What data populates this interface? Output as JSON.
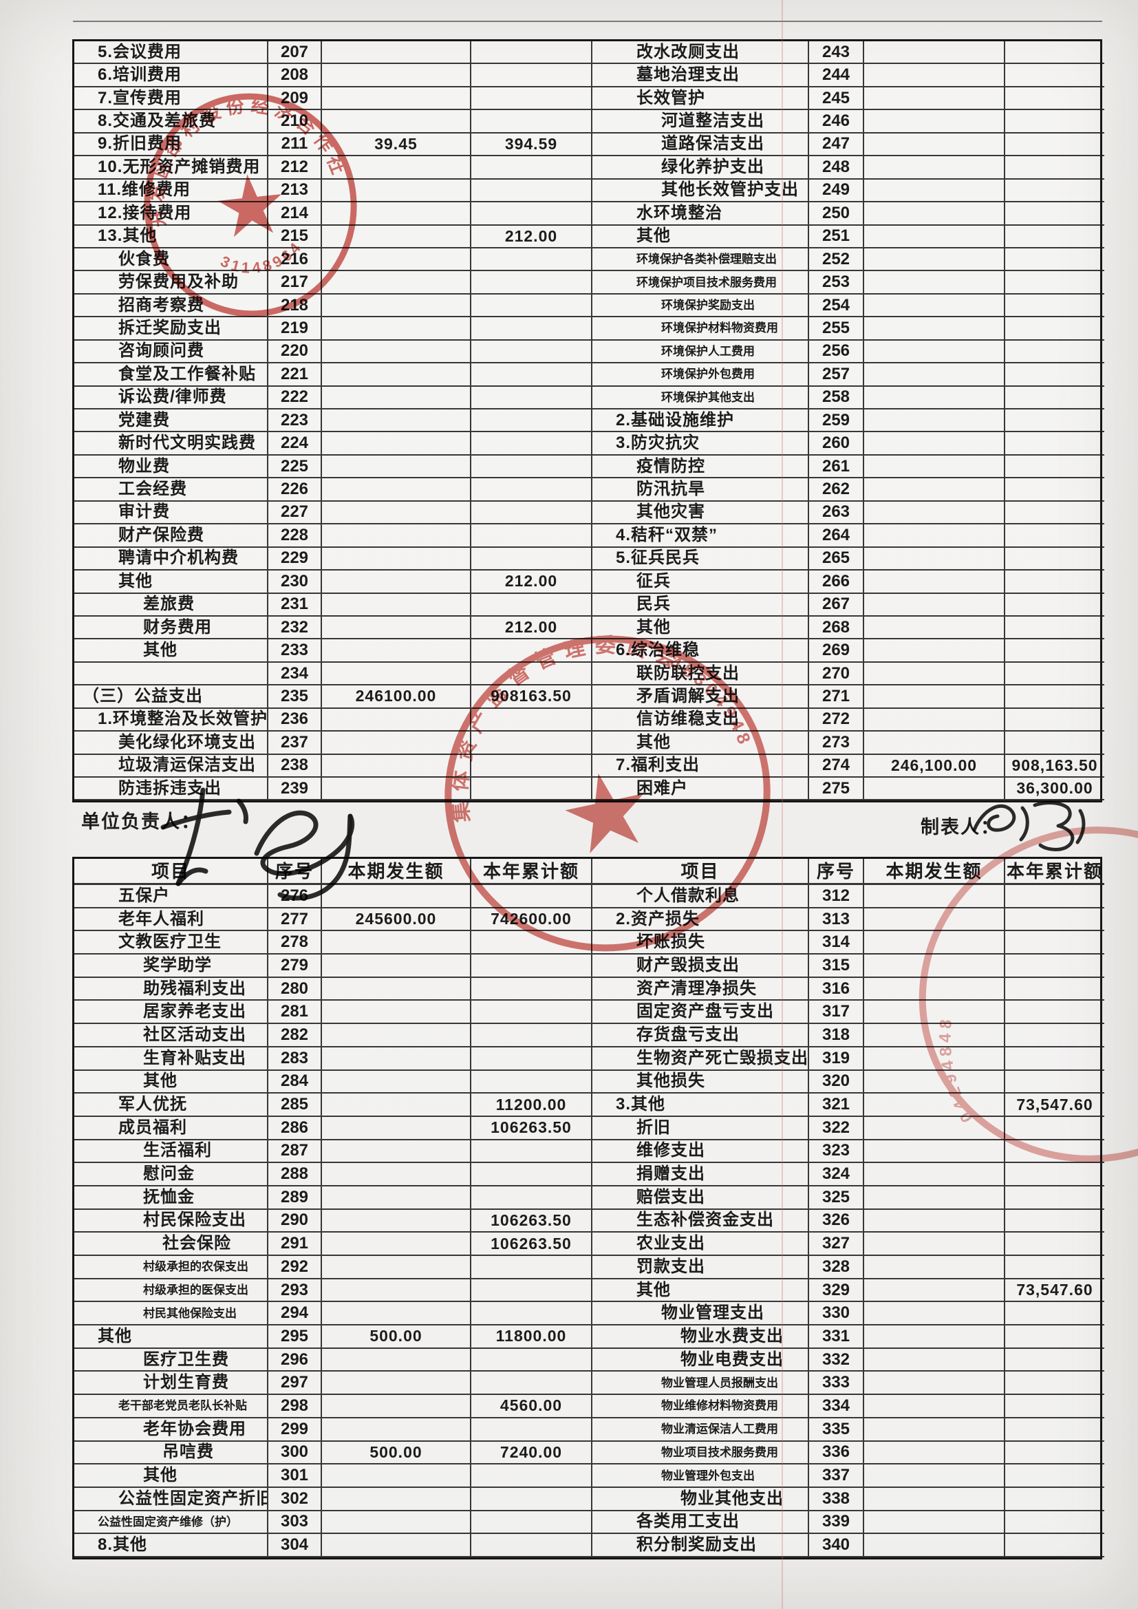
{
  "doc": {
    "unit_head_label": "单位负责人：",
    "preparer_label": "制表人：",
    "headers": [
      "项目",
      "序号",
      "本期发生额",
      "本年累计额"
    ],
    "colors": {
      "seal_red": "#c84a42",
      "ink": "#1c1c1c"
    }
  },
  "table1": {
    "left": [
      {
        "t": "5.会议费用",
        "n": "207",
        "i": 1
      },
      {
        "t": "6.培训费用",
        "n": "208",
        "i": 1
      },
      {
        "t": "7.宣传费用",
        "n": "209",
        "i": 1
      },
      {
        "t": "8.交通及差旅费",
        "n": "210",
        "i": 1
      },
      {
        "t": "9.折旧费用",
        "n": "211",
        "c": "39.45",
        "y": "394.59",
        "i": 1
      },
      {
        "t": "10.无形资产摊销费用",
        "n": "212",
        "i": 1
      },
      {
        "t": "11.维修费用",
        "n": "213",
        "i": 1
      },
      {
        "t": "12.接待费用",
        "n": "214",
        "i": 1
      },
      {
        "t": "13.其他",
        "n": "215",
        "y": "212.00",
        "i": 1
      },
      {
        "t": "伙食费",
        "n": "216",
        "i": 2
      },
      {
        "t": "劳保费用及补助",
        "n": "217",
        "i": 2
      },
      {
        "t": "招商考察费",
        "n": "218",
        "i": 2
      },
      {
        "t": "拆迁奖励支出",
        "n": "219",
        "i": 2
      },
      {
        "t": "咨询顾问费",
        "n": "220",
        "i": 2
      },
      {
        "t": "食堂及工作餐补贴",
        "n": "221",
        "i": 2
      },
      {
        "t": "诉讼费/律师费",
        "n": "222",
        "i": 2
      },
      {
        "t": "党建费",
        "n": "223",
        "i": 2
      },
      {
        "t": "新时代文明实践费",
        "n": "224",
        "i": 2
      },
      {
        "t": "物业费",
        "n": "225",
        "i": 2
      },
      {
        "t": "工会经费",
        "n": "226",
        "i": 2
      },
      {
        "t": "审计费",
        "n": "227",
        "i": 2
      },
      {
        "t": "财产保险费",
        "n": "228",
        "i": 2
      },
      {
        "t": "聘请中介机构费",
        "n": "229",
        "i": 2
      },
      {
        "t": "其他",
        "n": "230",
        "y": "212.00",
        "i": 2
      },
      {
        "t": "差旅费",
        "n": "231",
        "i": 3
      },
      {
        "t": "财务费用",
        "n": "232",
        "y": "212.00",
        "i": 3
      },
      {
        "t": "其他",
        "n": "233",
        "i": 3
      },
      {
        "t": "",
        "n": "234",
        "i": 1
      },
      {
        "t": "（三）公益支出",
        "n": "235",
        "c": "246100.00",
        "y": "908163.50",
        "i": 0
      },
      {
        "t": "1.环境整治及长效管护",
        "n": "236",
        "i": 1
      },
      {
        "t": "美化绿化环境支出",
        "n": "237",
        "i": 2
      },
      {
        "t": "垃圾清运保洁支出",
        "n": "238",
        "i": 2
      },
      {
        "t": "防违拆违支出",
        "n": "239",
        "i": 2
      }
    ],
    "right": [
      {
        "t": "改水改厕支出",
        "n": "243",
        "i": 2
      },
      {
        "t": "墓地治理支出",
        "n": "244",
        "i": 2
      },
      {
        "t": "长效管护",
        "n": "245",
        "i": 2
      },
      {
        "t": "河道整洁支出",
        "n": "246",
        "i": 3
      },
      {
        "t": "道路保洁支出",
        "n": "247",
        "i": 3
      },
      {
        "t": "绿化养护支出",
        "n": "248",
        "i": 3
      },
      {
        "t": "其他长效管护支出",
        "n": "249",
        "i": 3
      },
      {
        "t": "水环境整治",
        "n": "250",
        "i": 2
      },
      {
        "t": "其他",
        "n": "251",
        "i": 2
      },
      {
        "t": "环境保护各类补偿理赔支出",
        "n": "252",
        "i": 2,
        "s": 1
      },
      {
        "t": "环境保护项目技术服务费用",
        "n": "253",
        "i": 2,
        "s": 1
      },
      {
        "t": "环境保护奖励支出",
        "n": "254",
        "i": 3,
        "s": 1
      },
      {
        "t": "环境保护材料物资费用",
        "n": "255",
        "i": 3,
        "s": 1
      },
      {
        "t": "环境保护人工费用",
        "n": "256",
        "i": 3,
        "s": 1
      },
      {
        "t": "环境保护外包费用",
        "n": "257",
        "i": 3,
        "s": 1
      },
      {
        "t": "环境保护其他支出",
        "n": "258",
        "i": 3,
        "s": 1
      },
      {
        "t": "2.基础设施维护",
        "n": "259",
        "i": 1
      },
      {
        "t": "3.防灾抗灾",
        "n": "260",
        "i": 1
      },
      {
        "t": "疫情防控",
        "n": "261",
        "i": 2
      },
      {
        "t": "防汛抗旱",
        "n": "262",
        "i": 2
      },
      {
        "t": "其他灾害",
        "n": "263",
        "i": 2
      },
      {
        "t": "4.秸秆“双禁”",
        "n": "264",
        "i": 1
      },
      {
        "t": "5.征兵民兵",
        "n": "265",
        "i": 1
      },
      {
        "t": "征兵",
        "n": "266",
        "i": 2
      },
      {
        "t": "民兵",
        "n": "267",
        "i": 2
      },
      {
        "t": "其他",
        "n": "268",
        "i": 2
      },
      {
        "t": "6.综治维稳",
        "n": "269",
        "i": 1
      },
      {
        "t": "联防联控支出",
        "n": "270",
        "i": 2
      },
      {
        "t": "矛盾调解支出",
        "n": "271",
        "i": 2
      },
      {
        "t": "信访维稳支出",
        "n": "272",
        "i": 2
      },
      {
        "t": "其他",
        "n": "273",
        "i": 2
      },
      {
        "t": "7.福利支出",
        "n": "274",
        "c": "246,100.00",
        "y": "908,163.50",
        "i": 1
      },
      {
        "t": "困难户",
        "n": "275",
        "y": "36,300.00",
        "i": 2
      }
    ]
  },
  "table2": {
    "left": [
      {
        "t": "五保户",
        "n": "276",
        "i": 2
      },
      {
        "t": "老年人福利",
        "n": "277",
        "c": "245600.00",
        "y": "742600.00",
        "i": 2
      },
      {
        "t": "文教医疗卫生",
        "n": "278",
        "i": 2
      },
      {
        "t": "奖学助学",
        "n": "279",
        "i": 3
      },
      {
        "t": "助残福利支出",
        "n": "280",
        "i": 3
      },
      {
        "t": "居家养老支出",
        "n": "281",
        "i": 3
      },
      {
        "t": "社区活动支出",
        "n": "282",
        "i": 3
      },
      {
        "t": "生育补贴支出",
        "n": "283",
        "i": 3
      },
      {
        "t": "其他",
        "n": "284",
        "i": 3
      },
      {
        "t": "军人优抚",
        "n": "285",
        "y": "11200.00",
        "i": 2
      },
      {
        "t": "成员福利",
        "n": "286",
        "y": "106263.50",
        "i": 2
      },
      {
        "t": "生活福利",
        "n": "287",
        "i": 3
      },
      {
        "t": "慰问金",
        "n": "288",
        "i": 3
      },
      {
        "t": "抚恤金",
        "n": "289",
        "i": 3
      },
      {
        "t": "村民保险支出",
        "n": "290",
        "y": "106263.50",
        "i": 3
      },
      {
        "t": "社会保险",
        "n": "291",
        "y": "106263.50",
        "i": 4
      },
      {
        "t": "村级承担的农保支出",
        "n": "292",
        "i": 3,
        "s": 1
      },
      {
        "t": "村级承担的医保支出",
        "n": "293",
        "i": 3,
        "s": 1
      },
      {
        "t": "村民其他保险支出",
        "n": "294",
        "i": 3,
        "s": 1
      },
      {
        "t": "其他",
        "n": "295",
        "c": "500.00",
        "y": "11800.00",
        "i": 1
      },
      {
        "t": "医疗卫生费",
        "n": "296",
        "i": 3
      },
      {
        "t": "计划生育费",
        "n": "297",
        "i": 3
      },
      {
        "t": "老干部老党员老队长补贴",
        "n": "298",
        "y": "4560.00",
        "i": 2,
        "s": 1
      },
      {
        "t": "老年协会费用",
        "n": "299",
        "i": 3
      },
      {
        "t": "吊唁费",
        "n": "300",
        "c": "500.00",
        "y": "7240.00",
        "i": 4
      },
      {
        "t": "其他",
        "n": "301",
        "i": 3
      },
      {
        "t": "公益性固定资产折旧",
        "n": "302",
        "i": 2
      },
      {
        "t": "公益性固定资产维修（护）",
        "n": "303",
        "i": 1,
        "s": 1
      },
      {
        "t": "8.其他",
        "n": "304",
        "i": 1
      }
    ],
    "right": [
      {
        "t": "个人借款利息",
        "n": "312",
        "i": 2
      },
      {
        "t": "2.资产损失",
        "n": "313",
        "i": 1
      },
      {
        "t": "坏账损失",
        "n": "314",
        "i": 2
      },
      {
        "t": "财产毁损支出",
        "n": "315",
        "i": 2
      },
      {
        "t": "资产清理净损失",
        "n": "316",
        "i": 2
      },
      {
        "t": "固定资产盘亏支出",
        "n": "317",
        "i": 2
      },
      {
        "t": "存货盘亏支出",
        "n": "318",
        "i": 2
      },
      {
        "t": "生物资产死亡毁损支出",
        "n": "319",
        "i": 2
      },
      {
        "t": "其他损失",
        "n": "320",
        "i": 2
      },
      {
        "t": "3.其他",
        "n": "321",
        "y": "73,547.60",
        "i": 1
      },
      {
        "t": "折旧",
        "n": "322",
        "i": 2
      },
      {
        "t": "维修支出",
        "n": "323",
        "i": 2
      },
      {
        "t": "捐赠支出",
        "n": "324",
        "i": 2
      },
      {
        "t": "赔偿支出",
        "n": "325",
        "i": 2
      },
      {
        "t": "生态补偿资金支出",
        "n": "326",
        "i": 2
      },
      {
        "t": "农业支出",
        "n": "327",
        "i": 2
      },
      {
        "t": "罚款支出",
        "n": "328",
        "i": 2
      },
      {
        "t": "其他",
        "n": "329",
        "y": "73,547.60",
        "i": 2
      },
      {
        "t": "物业管理支出",
        "n": "330",
        "i": 3
      },
      {
        "t": "物业水费支出",
        "n": "331",
        "i": 4
      },
      {
        "t": "物业电费支出",
        "n": "332",
        "i": 4
      },
      {
        "t": "物业管理人员报酬支出",
        "n": "333",
        "i": 3,
        "s": 1
      },
      {
        "t": "物业维修材料物资费用",
        "n": "334",
        "i": 3,
        "s": 1
      },
      {
        "t": "物业清运保洁人工费用",
        "n": "335",
        "i": 3,
        "s": 1
      },
      {
        "t": "物业项目技术服务费用",
        "n": "336",
        "i": 3,
        "s": 1
      },
      {
        "t": "物业管理外包支出",
        "n": "337",
        "i": 3,
        "s": 1
      },
      {
        "t": "物业其他支出",
        "n": "338",
        "i": 4
      },
      {
        "t": "各类用工支出",
        "n": "339",
        "i": 2
      },
      {
        "t": "积分制奖励支出",
        "n": "340",
        "i": 2
      }
    ]
  },
  "stamps": [
    {
      "name": "red-seal-top-left",
      "arc_text": "开发区邵村股份经济合作社",
      "digits": "31148964"
    },
    {
      "name": "red-seal-center",
      "arc_text": "集体资产监督管理委员会",
      "digits": "48304948"
    },
    {
      "name": "red-seal-right-partial",
      "arc_text": "",
      "digits": "04294848"
    }
  ]
}
